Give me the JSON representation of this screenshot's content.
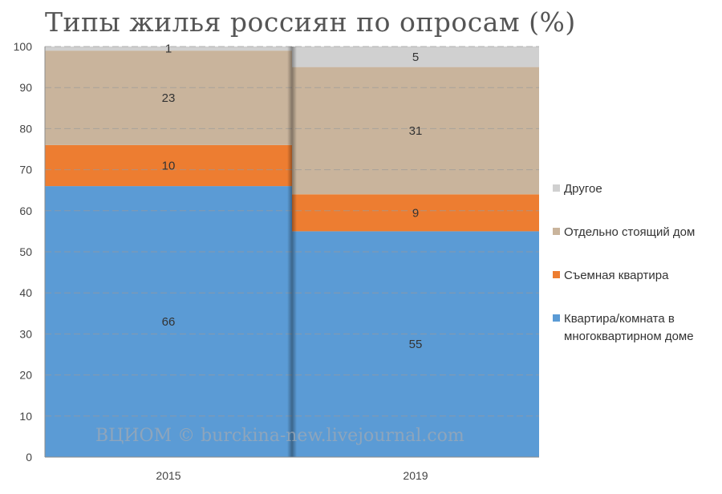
{
  "title": "Типы жилья россиян по опросам (%)",
  "watermark": "ВЦИОМ © burckina-new.livejournal.com",
  "chart_data": {
    "type": "bar",
    "stacked": true,
    "title": "Типы жилья россиян по опросам (%)",
    "categories": [
      "2015",
      "2019"
    ],
    "series": [
      {
        "name": "Квартира/комната в многоквартирном доме",
        "values": [
          66,
          55
        ],
        "color": "#5B9BD5"
      },
      {
        "name": "Съемная квартира",
        "values": [
          10,
          9
        ],
        "color": "#ED7D31"
      },
      {
        "name": "Отдельно стоящий дом",
        "values": [
          23,
          31
        ],
        "color": "#C9B49C"
      },
      {
        "name": "Другое",
        "values": [
          1,
          5
        ],
        "color": "#D0D0D0"
      }
    ],
    "ylim": [
      0,
      100
    ],
    "yticks": [
      0,
      10,
      20,
      30,
      40,
      50,
      60,
      70,
      80,
      90,
      100
    ],
    "grid": true,
    "legend_position": "right"
  }
}
